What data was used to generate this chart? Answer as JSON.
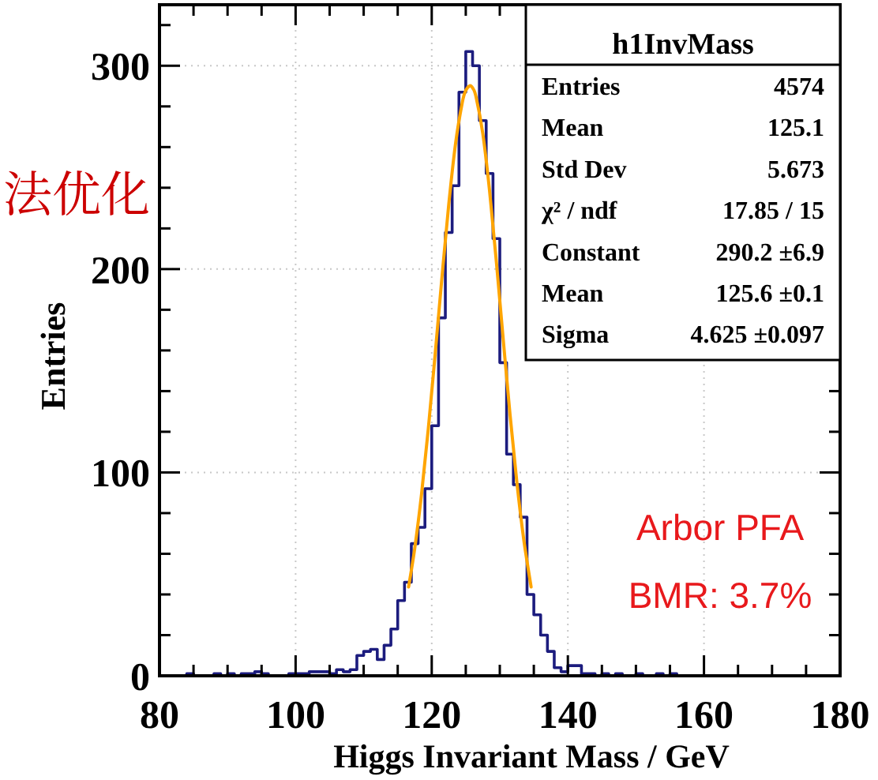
{
  "chart_data": {
    "type": "histogram",
    "xlabel": "Higgs Invariant Mass / GeV",
    "ylabel": "Entries",
    "color": "#1c1c7e",
    "bins": [
      80,
      81,
      82,
      83,
      84,
      85,
      86,
      87,
      88,
      89,
      90,
      91,
      92,
      93,
      94,
      95,
      96,
      97,
      98,
      99,
      100,
      101,
      102,
      103,
      104,
      105,
      106,
      107,
      108,
      109,
      110,
      111,
      112,
      113,
      114,
      115,
      116,
      117,
      118,
      119,
      120,
      121,
      122,
      123,
      124,
      125,
      126,
      127,
      128,
      129,
      130,
      131,
      132,
      133,
      134,
      135,
      136,
      137,
      138,
      139,
      140,
      141,
      142,
      143,
      144,
      145,
      146,
      147,
      148,
      149,
      150,
      151,
      152,
      153,
      154,
      155,
      156,
      157,
      158,
      159,
      160,
      161,
      162,
      163,
      164,
      165,
      166,
      167,
      168,
      169,
      170,
      171,
      172,
      173,
      174,
      175,
      176,
      177,
      178,
      179,
      180
    ],
    "values": [
      0,
      0,
      0,
      0,
      1,
      0,
      0,
      0,
      1,
      0,
      1,
      0,
      1,
      1,
      2,
      1,
      0,
      0,
      0,
      1,
      1,
      1,
      2,
      2,
      2,
      1,
      3,
      2,
      3,
      10,
      12,
      13,
      8,
      15,
      23,
      37,
      46,
      65,
      73,
      92,
      123,
      176,
      218,
      241,
      287,
      307,
      300,
      273,
      247,
      215,
      154,
      109,
      94,
      78,
      40,
      30,
      20,
      12,
      4,
      2,
      5,
      5,
      1,
      1,
      0,
      1,
      0,
      1,
      0,
      0,
      1,
      0,
      0,
      1,
      0,
      1,
      0,
      0,
      0,
      0,
      0,
      0,
      0,
      0,
      0,
      0,
      0,
      0,
      0,
      0,
      0,
      0,
      0,
      0,
      0,
      0,
      0,
      0,
      0,
      0
    ],
    "series": [
      {
        "type": "line",
        "color": "#ffa500",
        "x": [
          116.6,
          117.5,
          118.5,
          119.5,
          120.5,
          121.5,
          122.5,
          123.5,
          124.5,
          125.0,
          125.6,
          126.0,
          126.5,
          127.5,
          128.5,
          129.5,
          130.5,
          131.5,
          132.5,
          133.5,
          134.6
        ],
        "values": [
          43.7,
          62.6,
          89.3,
          121.6,
          158.0,
          195.9,
          231.8,
          261.8,
          282.1,
          287.8,
          290.2,
          289.1,
          284.8,
          266.7,
          238.4,
          203.4,
          165.6,
          128.6,
          95.4,
          67.5,
          43.7
        ]
      }
    ],
    "xlim": [
      80,
      180
    ],
    "ylim": [
      0,
      330
    ],
    "xticks": [
      80,
      {
        "value": 85,
        "label": null
      },
      {
        "value": 90,
        "label": null
      },
      {
        "value": 95,
        "label": null
      },
      100,
      {
        "value": 105,
        "label": null
      },
      {
        "value": 110,
        "label": null
      },
      {
        "value": 115,
        "label": null
      },
      120,
      {
        "value": 125,
        "label": null
      },
      {
        "value": 130,
        "label": null
      },
      {
        "value": 135,
        "label": null
      },
      140,
      {
        "value": 145,
        "label": null
      },
      {
        "value": 150,
        "label": null
      },
      {
        "value": 155,
        "label": null
      },
      160,
      {
        "value": 165,
        "label": null
      },
      {
        "value": 170,
        "label": null
      },
      {
        "value": 175,
        "label": null
      },
      180
    ],
    "yticks": [
      0,
      {
        "value": 20,
        "label": null
      },
      {
        "value": 40,
        "label": null
      },
      {
        "value": 60,
        "label": null
      },
      {
        "value": 80,
        "label": null
      },
      100,
      {
        "value": 120,
        "label": null
      },
      {
        "value": 140,
        "label": null
      },
      {
        "value": 160,
        "label": null
      },
      {
        "value": 180,
        "label": null
      },
      200,
      {
        "value": 220,
        "label": null
      },
      {
        "value": 240,
        "label": null
      },
      {
        "value": 260,
        "label": null
      },
      {
        "value": 280,
        "label": null
      },
      300,
      {
        "value": 320,
        "label": null
      }
    ],
    "grid": true,
    "annotations": [
      "h1InvMass",
      "Entries",
      "4574",
      "Mean",
      "125.1",
      "Std Dev",
      "5.673",
      "χ² / ndf",
      "17.85 / 15",
      "Constant",
      "290.2 ±6.9",
      "Mean",
      "125.6 ±0.1",
      "Sigma",
      "4.625 ±0.097",
      "Arbor PFA",
      "BMR: 3.7%",
      "法优化"
    ]
  }
}
